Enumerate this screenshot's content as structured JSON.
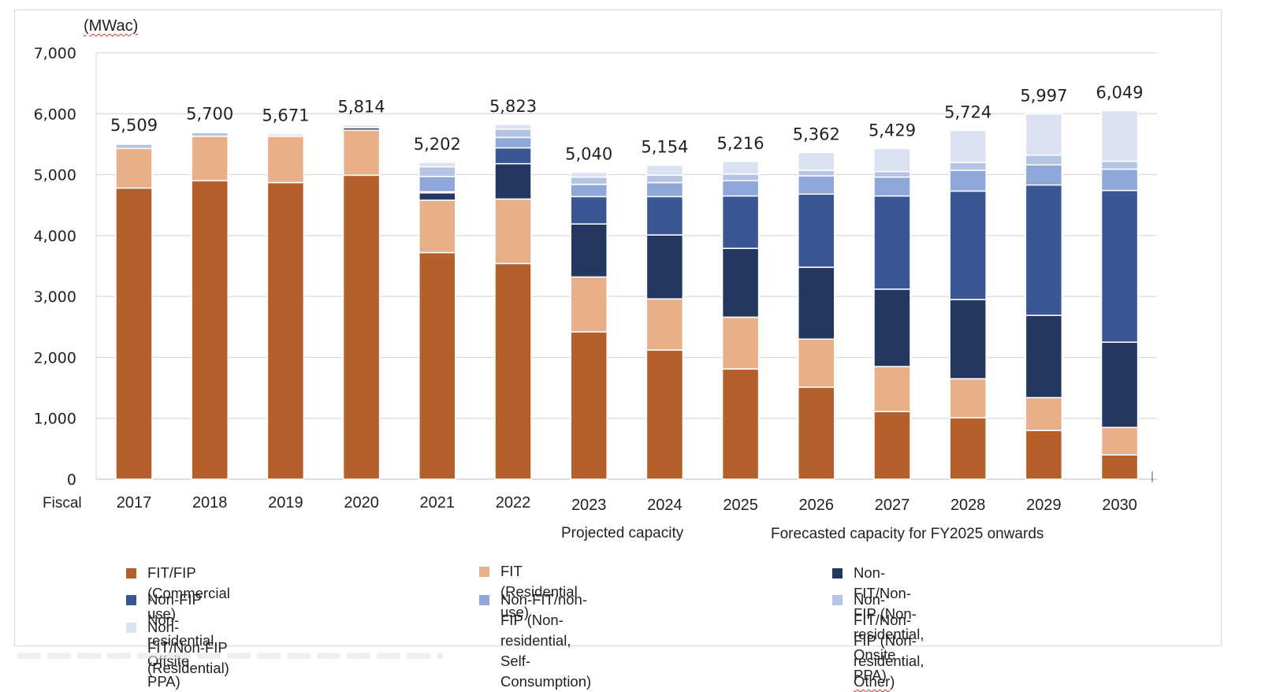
{
  "chart_data": {
    "type": "bar",
    "stacked": true,
    "unit_label": "(MWac)",
    "ylabel": "MWac",
    "xlabel_prefix": "Fiscal",
    "ylim": [
      0,
      7000
    ],
    "yticks": [
      0,
      1000,
      2000,
      3000,
      4000,
      5000,
      6000,
      7000
    ],
    "ytick_labels": [
      "0",
      "1,000",
      "2,000",
      "3,000",
      "4,000",
      "5,000",
      "6,000",
      "7,000"
    ],
    "grid": true,
    "categories": [
      "2017",
      "2018",
      "2019",
      "2020",
      "2021",
      "2022",
      "2023",
      "2024",
      "2025",
      "2026",
      "2027",
      "2028",
      "2029",
      "2030"
    ],
    "totals": [
      5509,
      5700,
      5671,
      5814,
      5202,
      5823,
      5040,
      5154,
      5216,
      5362,
      5429,
      5724,
      5997,
      6049
    ],
    "total_labels": [
      "5,509",
      "5,700",
      "5,671",
      "5,814",
      "5,202",
      "5,823",
      "5,040",
      "5,154",
      "5,216",
      "5,362",
      "5,429",
      "5,724",
      "5,997",
      "6,049"
    ],
    "series": [
      {
        "name": "FIT/FIP (Commercial use)",
        "color": "#B5602A",
        "values": [
          4780,
          4900,
          4870,
          4990,
          3720,
          3540,
          2420,
          2120,
          1810,
          1510,
          1110,
          1010,
          800,
          400
        ]
      },
      {
        "name": "FIT (Residential use)",
        "color": "#E8B088",
        "values": [
          650,
          730,
          760,
          740,
          860,
          1060,
          900,
          840,
          850,
          790,
          740,
          640,
          540,
          450
        ]
      },
      {
        "name": "Non-FIT/Non-FIP (Non-residential, Onsite PPA)",
        "color": "#243760",
        "values": [
          0,
          0,
          0,
          40,
          120,
          580,
          870,
          1050,
          1130,
          1180,
          1270,
          1300,
          1350,
          1400
        ]
      },
      {
        "name": "Non-FIP Non-residential, Offsite PPA)",
        "color": "#3A5795",
        "values": [
          0,
          0,
          0,
          0,
          20,
          260,
          450,
          630,
          860,
          1200,
          1530,
          1780,
          2140,
          2490
        ]
      },
      {
        "name": "Non-FIT/non-FIP (Non-residential, Self-Consumption)",
        "color": "#8EA6D8",
        "values": [
          0,
          0,
          0,
          0,
          250,
          170,
          200,
          230,
          250,
          300,
          310,
          340,
          330,
          350
        ]
      },
      {
        "name": "Non-FIT/Non-FIP (Non-residential, Other)",
        "color": "#B6C4E4",
        "values": [
          70,
          60,
          0,
          0,
          160,
          140,
          120,
          120,
          110,
          90,
          90,
          130,
          160,
          130
        ]
      },
      {
        "name": "Non-FIT/Non-FIP (Residential)",
        "color": "#DAE1F1",
        "values": [
          9,
          10,
          41,
          44,
          72,
          73,
          80,
          164,
          206,
          292,
          379,
          524,
          677,
          829
        ]
      }
    ],
    "annotations": [
      {
        "text": "Projected capacity",
        "under": [
          "2023",
          "2024"
        ]
      },
      {
        "text": "Forecasted capacity for FY2025 onwards",
        "under": [
          "2026",
          "2029"
        ]
      }
    ],
    "legend_position": "bottom"
  },
  "legend": {
    "items": [
      {
        "label": "FIT/FIP (Commercial use)",
        "color": "#B5602A"
      },
      {
        "label": "FIT (Residential use)",
        "color": "#E8B088"
      },
      {
        "label": "Non-FIT/Non-FIP (Non-residential, Onsite PPA)",
        "color": "#243760"
      },
      {
        "label": "Non-FIP Non-residential, Offsite PPA)",
        "color": "#3A5795"
      },
      {
        "label": "Non-FIT/non-FIP (Non-residential,\nSelf-Consumption)",
        "color": "#8EA6D8"
      },
      {
        "label_main": "Non-FIT/Non-FIP (Non-residential, ",
        "label_flag": "Other",
        "label_end": ")",
        "color": "#B6C4E4"
      },
      {
        "label": "Non-FIT/Non-FIP (Residential)",
        "color": "#DAE1F1"
      }
    ]
  },
  "labels": {
    "projected": "Projected capacity",
    "forecasted": "Forecasted capacity for FY2025 onwards",
    "fiscal": "Fiscal",
    "unit": "(MWac)"
  }
}
